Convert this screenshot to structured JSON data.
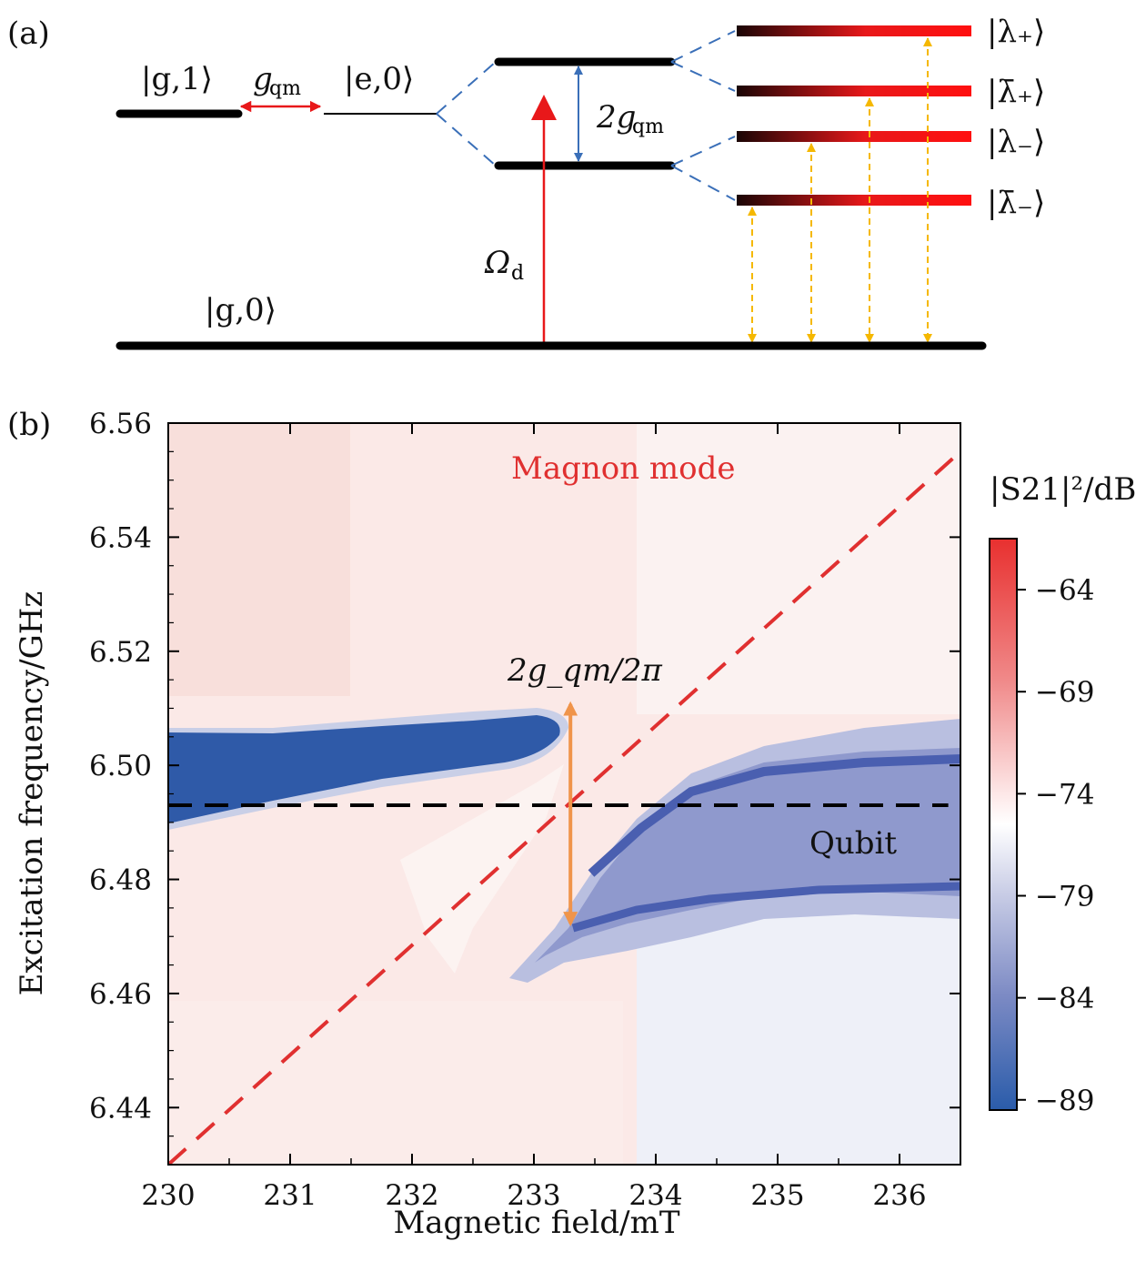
{
  "panel_a": {
    "label": "(a)",
    "states": {
      "g1": "|g,1⟩",
      "e0": "|e,0⟩",
      "g0": "|g,0⟩",
      "coupling": "g",
      "coupling_sub": "qm",
      "splitting_prefix": "2g",
      "splitting_sub": "qm",
      "drive": "Ω",
      "drive_sub": "d",
      "lambda_plus": "|λ₊⟩",
      "lambda_bar_plus": "|λ̄₊⟩",
      "lambda_minus": "|λ₋⟩",
      "lambda_bar_minus": "|λ̄₋⟩"
    }
  },
  "panel_b": {
    "label": "(b)",
    "chart_data": {
      "type": "heatmap",
      "title": "",
      "xlabel": "Magnetic field/mT",
      "ylabel": "Excitation frequency/GHz",
      "xlim": [
        230,
        236.5
      ],
      "ylim": [
        6.43,
        6.56
      ],
      "x_ticks": [
        "230",
        "231",
        "232",
        "233",
        "234",
        "235",
        "236"
      ],
      "y_ticks": [
        "6.44",
        "6.46",
        "6.48",
        "6.50",
        "6.52",
        "6.54",
        "6.56"
      ],
      "colorbar": {
        "label": "|S21|²/dB",
        "range": [
          -89.5,
          -61.5
        ],
        "ticks": [
          "−64",
          "−69",
          "−74",
          "−79",
          "−84",
          "−89"
        ],
        "colors": [
          "#2a5caa",
          "#ffffff",
          "#e8302f"
        ]
      },
      "qubit_line": {
        "y": 6.493,
        "x_range": [
          230,
          236.4
        ],
        "label": "Qubit"
      },
      "magnon_line": {
        "x_range": [
          230,
          236.5
        ],
        "y_range": [
          6.43,
          6.555
        ],
        "label": "Magnon mode"
      },
      "splitting_arrow": {
        "x": 233.3,
        "y_range": [
          6.471,
          6.512
        ],
        "label": "2g_qm/2π"
      },
      "upper_branch": [
        [
          230,
          6.499
        ],
        [
          231,
          6.502
        ],
        [
          232,
          6.505
        ],
        [
          232.7,
          6.507
        ],
        [
          233.2,
          6.509
        ]
      ],
      "lower_branch": [
        [
          233.3,
          6.471
        ],
        [
          234,
          6.474
        ],
        [
          235,
          6.478
        ],
        [
          236,
          6.48
        ],
        [
          236.5,
          6.48
        ]
      ],
      "right_upper_branch": [
        [
          233.6,
          6.484
        ],
        [
          234,
          6.492
        ],
        [
          235,
          6.498
        ],
        [
          236,
          6.5
        ],
        [
          236.5,
          6.501
        ]
      ]
    }
  }
}
